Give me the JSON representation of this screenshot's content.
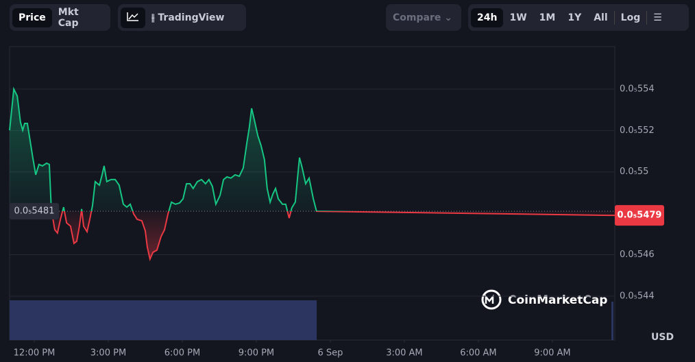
{
  "toolbar": {
    "view_tabs": [
      "Price",
      "Mkt Cap"
    ],
    "chart_tools": [
      "TradingView"
    ],
    "compare": "Compare",
    "ranges": [
      "24h",
      "1W",
      "1M",
      "1Y",
      "All"
    ],
    "log": "Log"
  },
  "watermark": "CoinMarketCap",
  "currency": "USD",
  "chart_data": {
    "type": "line",
    "xlim": [
      -1,
      23.53
    ],
    "ylim": [
      5.4188e-06,
      5.5605e-06
    ],
    "xticks": [
      {
        "value": 0,
        "label": "12:00 PM"
      },
      {
        "value": 3,
        "label": "3:00 PM"
      },
      {
        "value": 6,
        "label": "6:00 PM"
      },
      {
        "value": 9,
        "label": "9:00 PM"
      },
      {
        "value": 12,
        "label": "6 Sep"
      },
      {
        "value": 15,
        "label": "3:00 AM"
      },
      {
        "value": 18,
        "label": "6:00 AM"
      },
      {
        "value": 21,
        "label": "9:00 AM"
      }
    ],
    "yticks": [
      {
        "value": 5.54e-06,
        "label": "0.0₅554"
      },
      {
        "value": 5.52e-06,
        "label": "0.0₅552"
      },
      {
        "value": 5.5e-06,
        "label": "0.0₅55"
      },
      {
        "value": 5.46e-06,
        "label": "0.0₅546"
      },
      {
        "value": 5.44e-06,
        "label": "0.0₅544"
      }
    ],
    "grid": true,
    "up_color": "#16c784",
    "down_color": "#ea3943",
    "reference": {
      "value": 5.481e-06,
      "label": "0.0₅5481"
    },
    "series": [
      {
        "x": [
          -1,
          -0.83,
          -0.69,
          -0.56,
          -0.47,
          -0.39,
          -0.28,
          -0.17,
          -0.06,
          0.06,
          0.19,
          0.33,
          0.5,
          0.61,
          0.69,
          0.83,
          0.94,
          1.06,
          1.19,
          1.31,
          1.47,
          1.61,
          1.72,
          1.83,
          1.92,
          2,
          2.14,
          2.25,
          2.36,
          2.47,
          2.64,
          2.75,
          2.83,
          2.94,
          3.11,
          3.28,
          3.44,
          3.61,
          3.75,
          3.89,
          4.03,
          4.17,
          4.36,
          4.5,
          4.58,
          4.69,
          4.81,
          4.97,
          5.14,
          5.28,
          5.42,
          5.56,
          5.72,
          5.89,
          6.03,
          6.17,
          6.31,
          6.44,
          6.61,
          6.78,
          6.94,
          7.08,
          7.22,
          7.36,
          7.53,
          7.67,
          7.81,
          7.97,
          8.14,
          8.31,
          8.47,
          8.61,
          8.72,
          8.81,
          8.92,
          9.06,
          9.19,
          9.33,
          9.44,
          9.56,
          9.67,
          9.78,
          9.89,
          10.06,
          10.19,
          10.33,
          10.44,
          10.58,
          10.67,
          10.75,
          10.86,
          11,
          11.14,
          11.31,
          11.44,
          23.53
        ],
        "values": [
          5.5201e-06,
          5.54e-06,
          5.5367e-06,
          5.5241e-06,
          5.5201e-06,
          5.5234e-06,
          5.5234e-06,
          5.5152e-06,
          5.5069e-06,
          5.4986e-06,
          5.5036e-06,
          5.5029e-06,
          5.5042e-06,
          5.5036e-06,
          5.4821e-06,
          5.4721e-06,
          5.4705e-06,
          5.4771e-06,
          5.483e-06,
          5.4754e-06,
          5.4738e-06,
          5.4655e-06,
          5.4665e-06,
          5.4738e-06,
          5.4821e-06,
          5.4738e-06,
          5.4711e-06,
          5.4771e-06,
          5.4837e-06,
          5.4953e-06,
          5.4936e-06,
          5.4986e-06,
          5.5029e-06,
          5.4953e-06,
          5.4963e-06,
          5.4963e-06,
          5.4936e-06,
          5.4844e-06,
          5.483e-06,
          5.4844e-06,
          5.4797e-06,
          5.4771e-06,
          5.4764e-06,
          5.4715e-06,
          5.4638e-06,
          5.4579e-06,
          5.4612e-06,
          5.4622e-06,
          5.4688e-06,
          5.4721e-06,
          5.4797e-06,
          5.4854e-06,
          5.4844e-06,
          5.485e-06,
          5.487e-06,
          5.4943e-06,
          5.4943e-06,
          5.492e-06,
          5.4953e-06,
          5.4963e-06,
          5.4943e-06,
          5.4963e-06,
          5.493e-06,
          5.4844e-06,
          5.4887e-06,
          5.4963e-06,
          5.4976e-06,
          5.497e-06,
          5.4986e-06,
          5.4979e-06,
          5.5019e-06,
          5.5135e-06,
          5.5218e-06,
          5.5307e-06,
          5.5251e-06,
          5.5175e-06,
          5.5128e-06,
          5.5059e-06,
          5.492e-06,
          5.4854e-06,
          5.4893e-06,
          5.492e-06,
          5.487e-06,
          5.4844e-06,
          5.4844e-06,
          5.4777e-06,
          5.4827e-06,
          5.4854e-06,
          5.497e-06,
          5.5069e-06,
          5.5019e-06,
          5.4943e-06,
          5.497e-06,
          5.487e-06,
          5.481e-06,
          5.479e-06
        ]
      }
    ],
    "last_price_label": "0.0₅5479"
  }
}
